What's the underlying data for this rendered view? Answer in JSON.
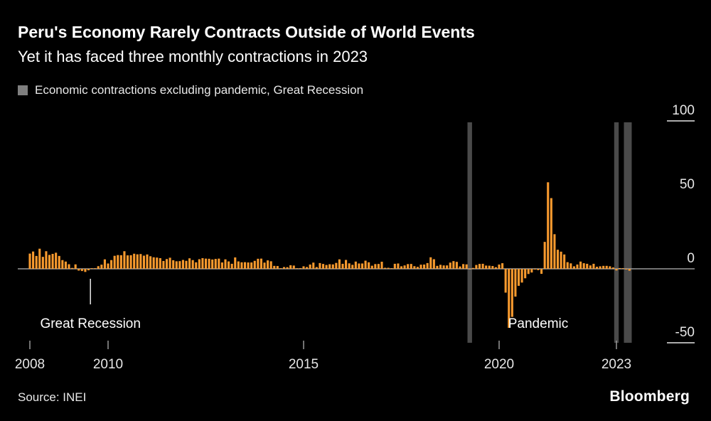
{
  "chart_data": {
    "type": "bar",
    "title": "Peru's Economy Rarely Contracts Outside of World Events",
    "subtitle": "Yet it has faced three monthly contractions in 2023",
    "legend": [
      {
        "label": "Economic contractions excluding pandemic, Great Recession",
        "color": "#7f7f7f"
      }
    ],
    "source": "Source: INEI",
    "brand": "Bloomberg",
    "frequency": "monthly",
    "x_start_year": 2008,
    "x_start_month": 1,
    "x_end": "2023-05",
    "bar_color": "#f89a2e",
    "highlight_color": "#4a4a4a",
    "axis_color": "#999999",
    "label_color": "#e6e6e6",
    "ylim": [
      -52,
      100
    ],
    "yticks": [
      100,
      50,
      0,
      -50
    ],
    "yticks_with_stub": [
      100,
      -50
    ],
    "xticks": [
      2008,
      2010,
      2015,
      2020,
      2023
    ],
    "highlighted_contraction_months": [
      "2019-04",
      "2023-01",
      "2023-04",
      "2023-05"
    ],
    "annotations": [
      {
        "text": "Great Recession",
        "year": 2009.55,
        "tick": true
      },
      {
        "text": "Pandemic",
        "year": 2021.0,
        "tick": false
      }
    ],
    "values": [
      10.3,
      11.7,
      8.7,
      13.6,
      8.1,
      11.9,
      9.4,
      10.1,
      10.9,
      8.7,
      5.9,
      4.9,
      3.1,
      0.6,
      3.0,
      -1.2,
      -1.5,
      -2.1,
      -1.0,
      0.1,
      0.3,
      1.8,
      2.8,
      6.4,
      3.6,
      5.9,
      8.8,
      9.3,
      9.2,
      11.9,
      9.1,
      9.2,
      10.2,
      9.8,
      10.0,
      8.9,
      9.7,
      8.5,
      7.8,
      7.6,
      7.2,
      5.3,
      6.6,
      7.5,
      5.8,
      5.1,
      5.2,
      6.0,
      5.4,
      7.1,
      5.9,
      4.4,
      6.5,
      7.2,
      6.9,
      6.8,
      6.3,
      6.7,
      6.9,
      4.3,
      6.4,
      5.0,
      3.4,
      7.7,
      5.0,
      4.4,
      4.5,
      4.3,
      4.3,
      5.4,
      6.8,
      6.9,
      4.2,
      5.7,
      5.1,
      2.0,
      1.9,
      0.3,
      1.2,
      1.1,
      2.4,
      2.2,
      0.3,
      0.5,
      1.7,
      1.2,
      2.9,
      4.2,
      1.2,
      3.9,
      3.3,
      2.6,
      3.1,
      3.0,
      4.0,
      6.4,
      3.4,
      6.0,
      3.7,
      2.7,
      4.9,
      3.6,
      3.6,
      5.5,
      4.4,
      2.1,
      3.2,
      3.3,
      4.8,
      0.7,
      0.7,
      0.2,
      3.4,
      3.6,
      1.7,
      2.3,
      3.2,
      3.3,
      1.8,
      1.3,
      2.8,
      2.9,
      3.9,
      7.8,
      6.5,
      2.0,
      2.7,
      2.3,
      2.3,
      4.2,
      5.2,
      4.7,
      1.6,
      3.2,
      3.0,
      -0.1,
      0.6,
      2.6,
      3.3,
      3.4,
      2.2,
      2.1,
      1.9,
      1.1,
      2.9,
      3.8,
      -16.1,
      -39.9,
      -32.5,
      -18.8,
      -11.5,
      -9.3,
      -6.4,
      -3.5,
      -2.5,
      -0.5,
      -0.9,
      -3.4,
      18.2,
      58.5,
      47.8,
      23.4,
      12.9,
      11.6,
      9.7,
      4.5,
      3.7,
      1.7,
      2.9,
      4.9,
      3.8,
      3.4,
      2.3,
      3.4,
      1.4,
      1.7,
      2.0,
      2.0,
      1.7,
      0.9,
      -1.1,
      0.5,
      0.2,
      -0.5,
      -1.3
    ]
  }
}
